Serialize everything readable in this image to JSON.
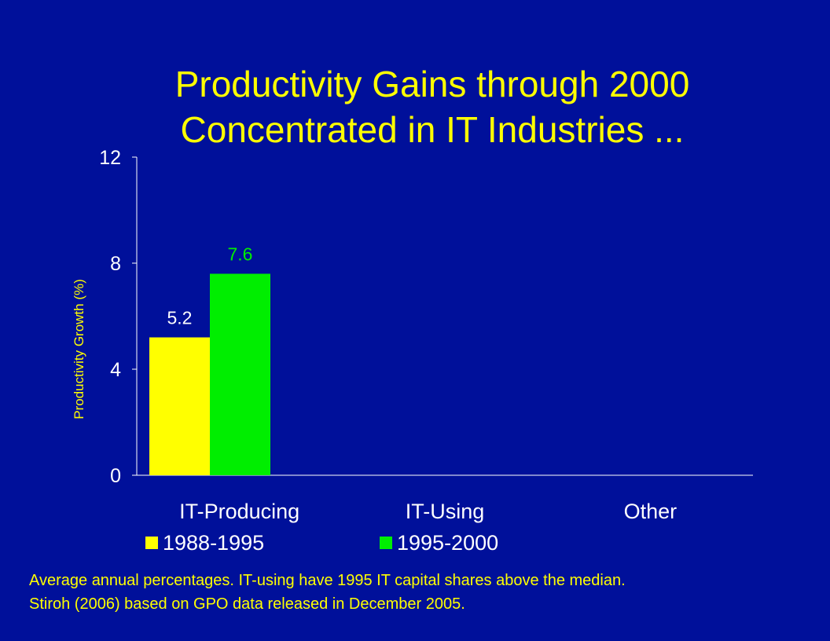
{
  "slide": {
    "title_line1": "Productivity Gains through 2000",
    "title_line2": "Concentrated in IT Industries ...",
    "notes_line1": "Average annual percentages.  IT-using have 1995 IT capital shares above the median.",
    "notes_line2": "Stiroh (2006) based on GPO data released in December 2005."
  },
  "chart_data": {
    "type": "bar",
    "title": "Productivity Gains through 2000 Concentrated in IT Industries ...",
    "xlabel": "",
    "ylabel": "Productivity Growth (%)",
    "ylim": [
      0,
      12
    ],
    "yticks": [
      0,
      4,
      8,
      12
    ],
    "grid": false,
    "legend_position": "bottom",
    "categories": [
      "IT-Producing",
      "IT-Using",
      "Other"
    ],
    "series": [
      {
        "name": "1988-1995",
        "color": "#ffff00",
        "values": [
          5.2,
          null,
          null
        ],
        "labels": [
          "5.2",
          "",
          ""
        ]
      },
      {
        "name": "1995-2000",
        "color": "#00ee00",
        "values": [
          7.6,
          null,
          null
        ],
        "labels": [
          "7.6",
          "",
          ""
        ]
      }
    ],
    "colors": {
      "axis": "#ffffff",
      "tick_text": "#ffffff",
      "ylabel_text": "#ffff00",
      "category_text": "#ffffff"
    }
  }
}
